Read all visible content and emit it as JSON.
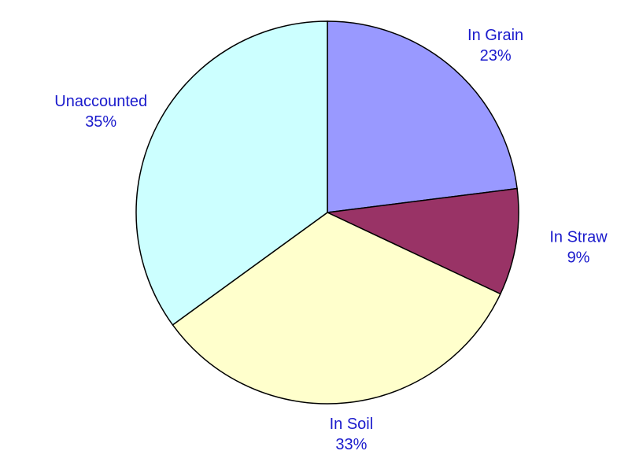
{
  "chart_data": {
    "type": "pie",
    "categories": [
      "In Grain",
      "In Straw",
      "In Soil",
      "Unaccounted"
    ],
    "values": [
      23,
      9,
      33,
      35
    ],
    "value_labels": [
      "23%",
      "9%",
      "33%",
      "35%"
    ],
    "colors": [
      "#9999ff",
      "#993366",
      "#ffffcc",
      "#ccffff"
    ]
  }
}
